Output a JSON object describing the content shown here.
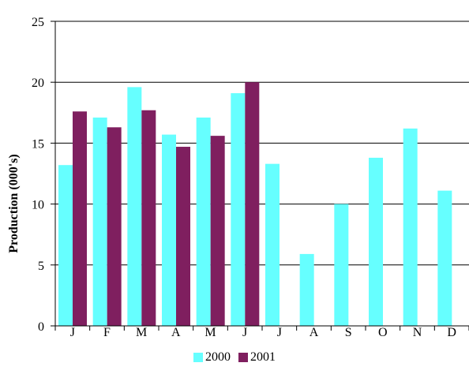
{
  "chart_data": {
    "type": "bar",
    "categories": [
      "J",
      "F",
      "M",
      "A",
      "M",
      "J",
      "J",
      "A",
      "S",
      "O",
      "N",
      "D"
    ],
    "series": [
      {
        "name": "2000",
        "color": "#66FFFF",
        "values": [
          13.2,
          17.1,
          19.6,
          15.7,
          17.1,
          19.1,
          13.3,
          5.9,
          10.0,
          13.8,
          16.2,
          11.1
        ]
      },
      {
        "name": "2001",
        "color": "#7F1F5F",
        "values": [
          17.6,
          16.3,
          17.7,
          14.7,
          15.6,
          20.0,
          null,
          null,
          null,
          null,
          null,
          null
        ]
      }
    ],
    "ylabel": "Production (000's)",
    "xlabel": "",
    "ylim": [
      0,
      25
    ],
    "yticks": [
      0,
      5,
      10,
      15,
      20,
      25
    ],
    "grid": true,
    "legend": "bottom"
  }
}
